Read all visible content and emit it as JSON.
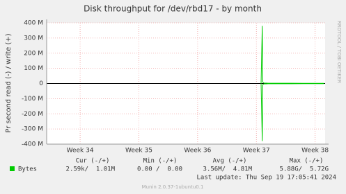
{
  "chart_data": {
    "type": "line",
    "title": "Disk throughput for /dev/rbd17 - by month",
    "y_label": "Pr second read (-) / write (+)",
    "side_text": "RRDTOOL / TOBI OETIKER",
    "x": [
      37.08,
      37.1,
      37.11,
      37.13,
      37.2,
      37.4,
      37.6,
      37.8,
      38.0,
      38.15
    ],
    "series": [
      {
        "name": "Bytes",
        "color": "#00cc00",
        "write": [
          0,
          380000000,
          8000000,
          3000000,
          2000000,
          1500000,
          1500000,
          1000000,
          1000000,
          1000000
        ],
        "read": [
          0,
          -380000000,
          -6000000,
          -3000000,
          -2000000,
          -1500000,
          -1500000,
          -1000000,
          -1000000,
          -1000000
        ]
      }
    ],
    "xlim": [
      33.43,
      38.17
    ],
    "xticks": [
      {
        "value": 34,
        "label": "Week 34"
      },
      {
        "value": 35,
        "label": "Week 35"
      },
      {
        "value": 36,
        "label": "Week 36"
      },
      {
        "value": 37,
        "label": "Week 37"
      },
      {
        "value": 38,
        "label": "Week 38"
      }
    ],
    "ylim": [
      -400000000,
      400000000
    ],
    "yticks": [
      {
        "value": -400000000,
        "label": "-400 M"
      },
      {
        "value": -300000000,
        "label": "-300 M"
      },
      {
        "value": -200000000,
        "label": "-200 M"
      },
      {
        "value": -100000000,
        "label": "-100 M"
      },
      0,
      {
        "value": 100000000,
        "label": "100 M"
      },
      {
        "value": 200000000,
        "label": "200 M"
      },
      {
        "value": 300000000,
        "label": "300 M"
      },
      {
        "value": 400000000,
        "label": "400 M"
      }
    ],
    "grid": true,
    "summary": {
      "headers": [
        "Cur (-/+)",
        "Min (-/+)",
        "Avg (-/+)",
        "Max (-/+)"
      ],
      "rows": [
        {
          "label": "Bytes",
          "values": [
            "2.59k/  1.01M",
            "0.00 /  0.00",
            "3.56M/  4.81M",
            "5.88G/  5.72G"
          ]
        }
      ],
      "last_update": "Last update: Thu Sep 19 17:05:41 2024"
    },
    "footer": "Munin 2.0.37-1ubuntu0.1"
  }
}
